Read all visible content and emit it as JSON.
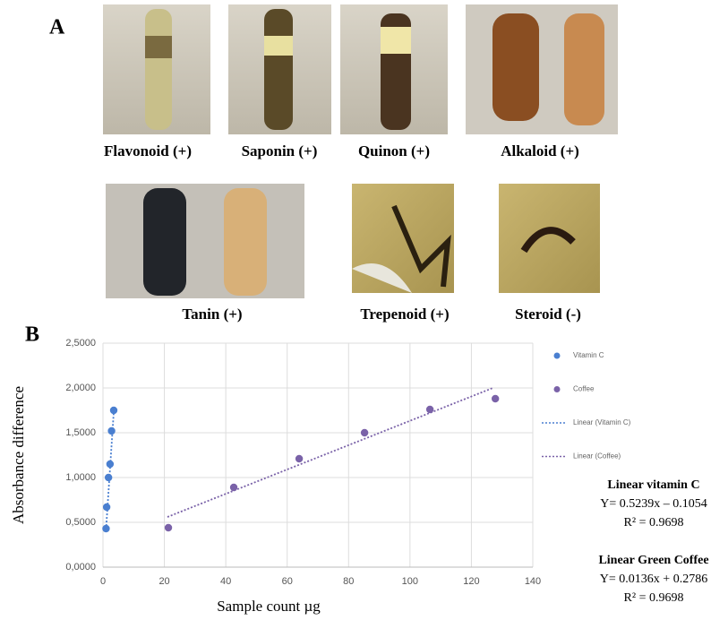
{
  "panel_a": {
    "label": "A",
    "captions": [
      "Flavonoid (+)",
      "Saponin (+)",
      "Quinon (+)",
      "Alkaloid (+)",
      "Tanin (+)",
      "Trepenoid (+)",
      "Steroid (-)"
    ]
  },
  "panel_b": {
    "label": "B"
  },
  "chart_data": {
    "type": "scatter",
    "x_label": "Sample count µg",
    "y_label": "Absorbance difference",
    "xlim": [
      0,
      140
    ],
    "xticks": [
      0,
      20,
      40,
      60,
      80,
      100,
      120,
      140
    ],
    "ylim": [
      0,
      2.5
    ],
    "yticks": [
      {
        "value": 0,
        "label": "0,0000"
      },
      {
        "value": 0.5,
        "label": "0,5000"
      },
      {
        "value": 1,
        "label": "1,0000"
      },
      {
        "value": 1.5,
        "label": "1,5000"
      },
      {
        "value": 2,
        "label": "2,0000"
      },
      {
        "value": 2.5,
        "label": "2,5000"
      }
    ],
    "grid": true,
    "series": [
      {
        "name": "Vitamin C",
        "color": "#4a7fd0",
        "mode": "markers",
        "x": [
          1,
          1.2,
          1.8,
          2.3,
          2.8,
          3.5
        ],
        "values": [
          0.43,
          0.67,
          1.0,
          1.15,
          1.52,
          1.75
        ]
      },
      {
        "name": "Coffee",
        "color": "#7a62a8",
        "mode": "markers",
        "x": [
          21.3,
          42.6,
          63.9,
          85.2,
          106.5,
          127.8
        ],
        "values": [
          0.44,
          0.89,
          1.21,
          1.5,
          1.76,
          1.88
        ]
      },
      {
        "name": "Linear (Vitamin C)",
        "color": "#4a7fd0",
        "mode": "line",
        "x": [
          1,
          3.6
        ],
        "values": [
          0.42,
          1.78
        ]
      },
      {
        "name": "Linear (Coffee)",
        "color": "#7a62a8",
        "mode": "line",
        "x": [
          21,
          127
        ],
        "values": [
          0.56,
          2.0
        ]
      }
    ],
    "annotations": [
      {
        "title": "Linear vitamin C",
        "equation": "Y= 0.5239x – 0.1054",
        "r2": "R² = 0.9698"
      },
      {
        "title": "Linear Green Coffee",
        "equation": "Y= 0.0136x + 0.2786",
        "r2": "R² = 0.9698"
      }
    ]
  }
}
